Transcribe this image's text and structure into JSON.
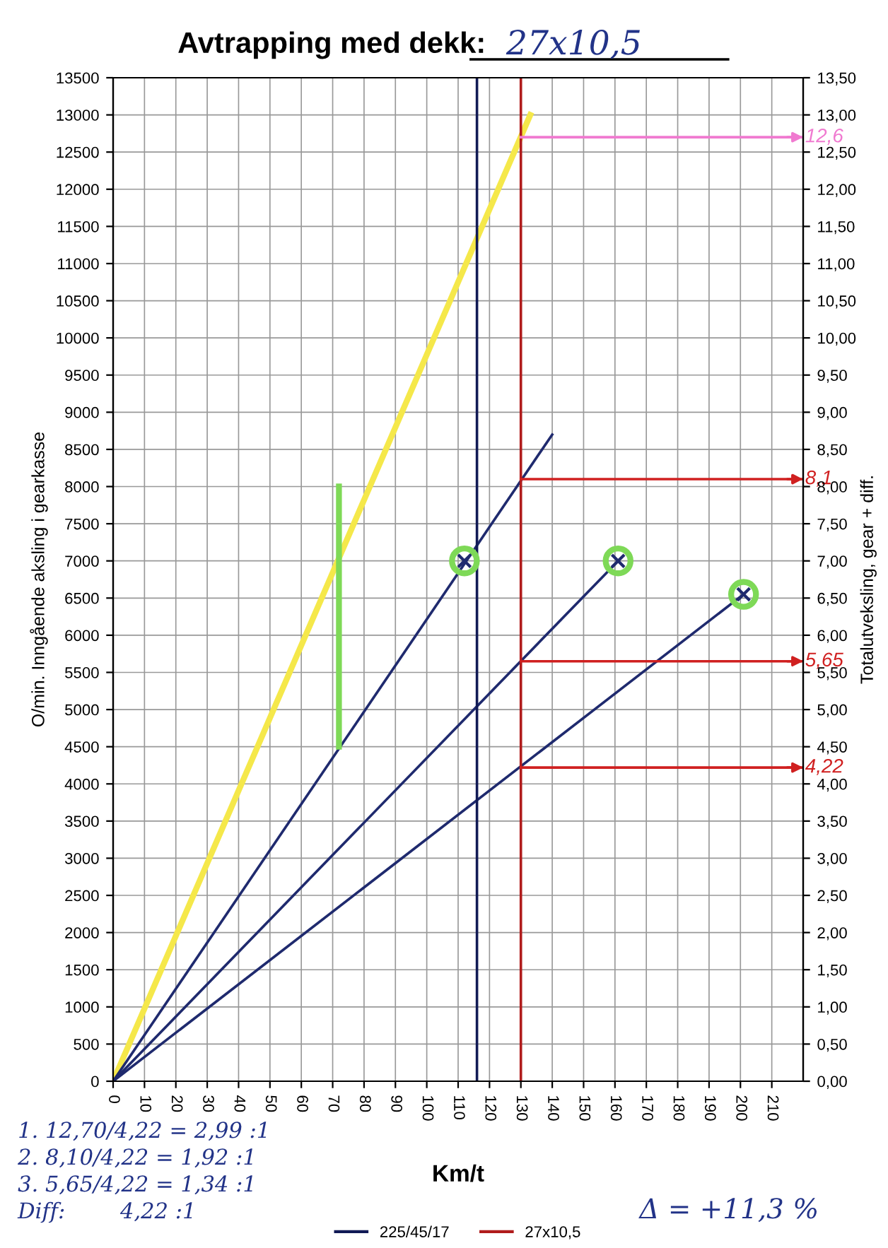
{
  "chart_data": {
    "type": "line",
    "title": "Avtrapping med dekk:",
    "subtitle": "27x10,5",
    "xlabel": "Km/t",
    "ylabel": "O/min. Inngående aksling i gearkasse",
    "y2label": "Totalutveksling, gear + diff.",
    "xlim": [
      0,
      220
    ],
    "xticks": [
      0,
      10,
      20,
      30,
      40,
      50,
      60,
      70,
      80,
      90,
      100,
      110,
      120,
      130,
      140,
      150,
      160,
      170,
      180,
      190,
      200,
      210
    ],
    "ylim": [
      0,
      13500
    ],
    "yticks": [
      0,
      500,
      1000,
      1500,
      2000,
      2500,
      3000,
      3500,
      4000,
      4500,
      5000,
      5500,
      6000,
      6500,
      7000,
      7500,
      8000,
      8500,
      9000,
      9500,
      10000,
      10500,
      11000,
      11500,
      12000,
      12500,
      13000,
      13500
    ],
    "y2lim": [
      0,
      13.5
    ],
    "y2ticks": [
      {
        "value": 0,
        "label": "0,00"
      },
      {
        "value": 0.5,
        "label": "0,50"
      },
      {
        "value": 1,
        "label": "1,00"
      },
      {
        "value": 1.5,
        "label": "1,50"
      },
      {
        "value": 2,
        "label": "2,00"
      },
      {
        "value": 2.5,
        "label": "2,50"
      },
      {
        "value": 3,
        "label": "3,00"
      },
      {
        "value": 3.5,
        "label": "3,50"
      },
      {
        "value": 4,
        "label": "4,00"
      },
      {
        "value": 4.5,
        "label": "4,50"
      },
      {
        "value": 5,
        "label": "5,00"
      },
      {
        "value": 5.5,
        "label": "5,50"
      },
      {
        "value": 6,
        "label": "6,00"
      },
      {
        "value": 6.5,
        "label": "6,50"
      },
      {
        "value": 7,
        "label": "7,00"
      },
      {
        "value": 7.5,
        "label": "7,50"
      },
      {
        "value": 8,
        "label": "8,00"
      },
      {
        "value": 8.5,
        "label": "8,50"
      },
      {
        "value": 9,
        "label": "9,00"
      },
      {
        "value": 9.5,
        "label": "9,50"
      },
      {
        "value": 10,
        "label": "10,00"
      },
      {
        "value": 10.5,
        "label": "10,50"
      },
      {
        "value": 11,
        "label": "11,00"
      },
      {
        "value": 11.5,
        "label": "11,50"
      },
      {
        "value": 12,
        "label": "12,00"
      },
      {
        "value": 12.5,
        "label": "12,50"
      },
      {
        "value": 13,
        "label": "13,00"
      },
      {
        "value": 13.5,
        "label": "13,50"
      }
    ],
    "grid": true,
    "legend": "bottom",
    "line_style": "solid",
    "marker": "none",
    "series": [
      {
        "color": "#f5e84a",
        "x": [
          0,
          133
        ],
        "values": [
          0,
          13000
        ]
      },
      {
        "color": "#1f2a6e",
        "x": [
          0,
          140
        ],
        "values": [
          0,
          8700
        ]
      },
      {
        "color": "#1f2a6e",
        "x": [
          0,
          161
        ],
        "values": [
          0,
          7000
        ]
      },
      {
        "color": "#1f2a6e",
        "x": [
          0,
          201
        ],
        "values": [
          0,
          6550
        ]
      },
      {
        "color": "#7ed957",
        "x": [
          72,
          72
        ],
        "values": [
          4500,
          8000
        ]
      },
      {
        "name": "225/45/17",
        "color": "#111a55",
        "x": [
          116,
          116
        ],
        "values": [
          0,
          13500
        ]
      },
      {
        "name": "27x10,5",
        "color": "#b01c1c",
        "x": [
          130,
          130
        ],
        "values": [
          0,
          13500
        ]
      },
      {
        "color": "#f07ad0",
        "x": [
          130,
          220
        ],
        "values": [
          12700,
          12700
        ]
      },
      {
        "color": "#d02020",
        "x": [
          130,
          220
        ],
        "values": [
          8100,
          8100
        ]
      },
      {
        "color": "#d02020",
        "x": [
          130,
          220
        ],
        "values": [
          5650,
          5650
        ]
      },
      {
        "color": "#d02020",
        "x": [
          130,
          220
        ],
        "values": [
          4220,
          4220
        ]
      },
      {
        "type": "scatter",
        "marker": "circle",
        "color": "#7ed957",
        "x": [
          112,
          161,
          201
        ],
        "values": [
          7000,
          7000,
          6550
        ]
      },
      {
        "type": "scatter",
        "marker": "cross",
        "color": "#1f2a6e",
        "x": [
          112,
          161,
          201
        ],
        "values": [
          7000,
          7000,
          6550
        ]
      }
    ],
    "annotations": [
      "12,6",
      "8,1",
      "5,65",
      "4,22",
      "1. 12,70/4,22 = 2,99 :1",
      "2. 8,10/4,22 = 1,92 :1",
      "3. 5,65/4,22 = 1,34 :1",
      "Diff:        4,22 :1",
      "Δ = +11,3 %"
    ]
  }
}
